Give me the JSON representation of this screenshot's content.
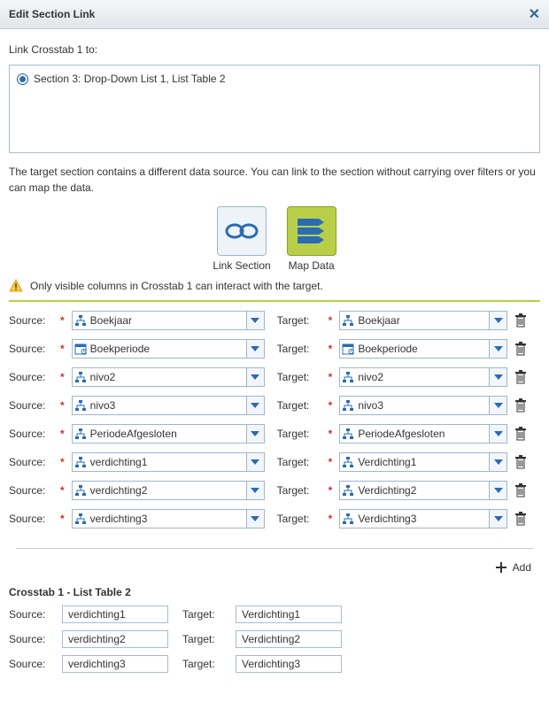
{
  "dialog": {
    "title": "Edit Section Link",
    "close_glyph": "✕",
    "link_label_prefix": "Link",
    "link_label_object": "Crosstab 1",
    "link_label_suffix": "to:"
  },
  "section_option": {
    "label": "Section 3: Drop-Down List 1, List Table 2",
    "selected": true
  },
  "hint_text": "The target section contains a different data source. You can link to the section without carrying over filters or you can map the data.",
  "action_buttons": {
    "link_section": {
      "label": "Link Section"
    },
    "map_data": {
      "label": "Map Data",
      "selected": true
    }
  },
  "warning_text": "Only visible columns in Crosstab 1 can interact with the target.",
  "labels": {
    "source": "Source:",
    "target": "Target:",
    "add": "Add"
  },
  "mappings": [
    {
      "source": {
        "icon": "hierarchy",
        "text": "Boekjaar"
      },
      "target": {
        "icon": "hierarchy",
        "text": "Boekjaar"
      }
    },
    {
      "source": {
        "icon": "calendar",
        "text": "Boekperiode"
      },
      "target": {
        "icon": "calendar",
        "text": "Boekperiode"
      }
    },
    {
      "source": {
        "icon": "hierarchy",
        "text": "nivo2"
      },
      "target": {
        "icon": "hierarchy",
        "text": "nivo2"
      }
    },
    {
      "source": {
        "icon": "hierarchy",
        "text": "nivo3"
      },
      "target": {
        "icon": "hierarchy",
        "text": "nivo3"
      }
    },
    {
      "source": {
        "icon": "hierarchy",
        "text": "PeriodeAfgesloten"
      },
      "target": {
        "icon": "hierarchy",
        "text": "PeriodeAfgesloten"
      }
    },
    {
      "source": {
        "icon": "hierarchy",
        "text": "verdichting1"
      },
      "target": {
        "icon": "hierarchy",
        "text": "Verdichting1"
      }
    },
    {
      "source": {
        "icon": "hierarchy",
        "text": "verdichting2"
      },
      "target": {
        "icon": "hierarchy",
        "text": "Verdichting2"
      }
    },
    {
      "source": {
        "icon": "hierarchy",
        "text": "verdichting3"
      },
      "target": {
        "icon": "hierarchy",
        "text": "Verdichting3"
      }
    }
  ],
  "sub_section": {
    "title": "Crosstab 1 - List Table 2",
    "rows": [
      {
        "source": "verdichting1",
        "target": "Verdichting1"
      },
      {
        "source": "verdichting2",
        "target": "Verdichting2"
      },
      {
        "source": "verdichting3",
        "target": "Verdichting3"
      }
    ]
  },
  "colors": {
    "accent_green": "#b9cf49",
    "accent_blue": "#2a6bb3",
    "border": "#9fb6cd"
  }
}
